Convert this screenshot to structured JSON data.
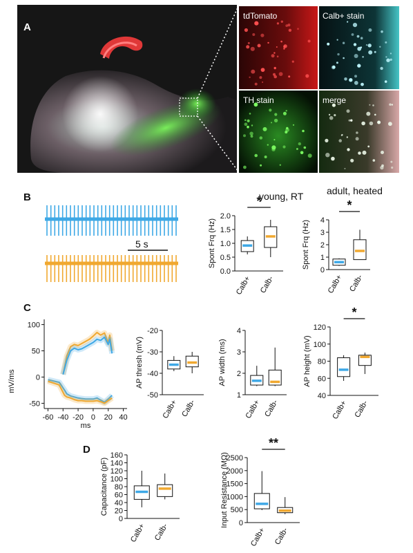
{
  "colors": {
    "calb_pos": "#3ea8e6",
    "calb_neg": "#f0a830",
    "green": "#3dd43d",
    "red": "#e02020",
    "cyan": "#4fd8d8"
  },
  "panels": {
    "A": "A",
    "B": "B",
    "C": "C",
    "D": "D"
  },
  "panel_a": {
    "micro_labels": [
      "tdTomato",
      "Calb+ stain",
      "TH stain",
      "merge"
    ]
  },
  "panel_b": {
    "scale_bar_label": "5 s",
    "chart_titles": [
      "young, RT",
      "adult, heated"
    ]
  },
  "chart_data": [
    {
      "type": "box",
      "id": "b1",
      "title": "young, RT",
      "ylabel": "Spont Frq (Hz)",
      "categories": [
        "Calb+",
        "Calb-"
      ],
      "ylim": [
        0,
        2
      ],
      "yticks": [
        0,
        0.5,
        1,
        1.5,
        2
      ],
      "ytick_labels": [
        "0.0",
        "0.5",
        "1.0",
        "1.5",
        "2.0"
      ],
      "boxes": [
        {
          "whislo": 0.6,
          "q1": 0.7,
          "med": 0.92,
          "q3": 1.1,
          "whishi": 1.25
        },
        {
          "whislo": 0.5,
          "q1": 0.85,
          "med": 1.25,
          "q3": 1.6,
          "whishi": 1.85
        }
      ],
      "significance": "*"
    },
    {
      "type": "box",
      "id": "b2",
      "title": "adult, heated",
      "ylabel": "Spont Frq (Hz)",
      "categories": [
        "Calb+",
        "Calb-"
      ],
      "ylim": [
        0,
        4
      ],
      "yticks": [
        0,
        1,
        2,
        3,
        4
      ],
      "ytick_labels": [
        "0",
        "1",
        "2",
        "3",
        "4"
      ],
      "boxes": [
        {
          "whislo": 0.3,
          "q1": 0.35,
          "med": 0.6,
          "q3": 0.85,
          "whishi": 0.9
        },
        {
          "whislo": 0.8,
          "q1": 0.8,
          "med": 1.5,
          "q3": 2.4,
          "whishi": 3.2
        }
      ],
      "significance": "*"
    },
    {
      "type": "line",
      "id": "c0",
      "ylabel": "mV/ms",
      "xlabel": "ms",
      "xlim": [
        -65,
        45
      ],
      "ylim": [
        -60,
        110
      ],
      "xticks": [
        -60,
        -40,
        -20,
        0,
        20,
        40
      ],
      "yticks": [
        -50,
        0,
        50,
        100
      ],
      "series": [
        {
          "color": "calb_neg",
          "x": [
            -40,
            -35,
            -30,
            -25,
            -20,
            -15,
            -10,
            -5,
            0,
            5,
            10,
            15,
            20,
            22,
            25
          ],
          "y": [
            5,
            40,
            58,
            62,
            60,
            64,
            68,
            72,
            78,
            85,
            80,
            84,
            65,
            80,
            50
          ]
        },
        {
          "color": "calb_pos",
          "x": [
            -40,
            -35,
            -30,
            -25,
            -20,
            -15,
            -10,
            -5,
            0,
            5,
            10,
            15,
            20,
            22,
            25
          ],
          "y": [
            5,
            32,
            50,
            55,
            52,
            54,
            58,
            62,
            66,
            72,
            70,
            76,
            62,
            72,
            45
          ]
        },
        {
          "color": "calb_pos",
          "x": [
            -60,
            -45,
            -38,
            -35,
            -30,
            -25,
            -20,
            -15,
            -10,
            -5,
            0,
            5,
            10,
            15,
            20,
            25
          ],
          "y": [
            -5,
            -10,
            -25,
            -32,
            -36,
            -38,
            -40,
            -41,
            -42,
            -42,
            -42,
            -40,
            -44,
            -48,
            -42,
            -35
          ]
        },
        {
          "color": "calb_neg",
          "x": [
            -60,
            -45,
            -38,
            -35,
            -30,
            -25,
            -20,
            -15,
            -10,
            -5,
            0,
            5,
            10,
            15,
            20,
            25
          ],
          "y": [
            -8,
            -15,
            -35,
            -38,
            -40,
            -43,
            -45,
            -45,
            -46,
            -46,
            -46,
            -45,
            -47,
            -50,
            -45,
            -40
          ]
        }
      ]
    },
    {
      "type": "box",
      "id": "c1",
      "ylabel": "AP thresh (mV)",
      "categories": [
        "Calb+",
        "Calb-"
      ],
      "ylim": [
        -50,
        -20
      ],
      "yticks": [
        -50,
        -40,
        -30,
        -20
      ],
      "ytick_labels": [
        "-50",
        "-40",
        "-30",
        "-20"
      ],
      "boxes": [
        {
          "whislo": -39,
          "q1": -38,
          "med": -36,
          "q3": -34,
          "whishi": -32
        },
        {
          "whislo": -40,
          "q1": -37,
          "med": -35,
          "q3": -32,
          "whishi": -30
        }
      ]
    },
    {
      "type": "box",
      "id": "c2",
      "ylabel": "AP width (ms)",
      "categories": [
        "Calb+",
        "Calb-"
      ],
      "ylim": [
        1,
        4
      ],
      "yticks": [
        1,
        2,
        3,
        4
      ],
      "ytick_labels": [
        "1",
        "2",
        "3",
        "4"
      ],
      "boxes": [
        {
          "whislo": 1.4,
          "q1": 1.45,
          "med": 1.65,
          "q3": 1.9,
          "whishi": 2.35
        },
        {
          "whislo": 1.4,
          "q1": 1.45,
          "med": 1.6,
          "q3": 2.15,
          "whishi": 3.2
        }
      ]
    },
    {
      "type": "box",
      "id": "c3",
      "ylabel": "AP height (mV)",
      "categories": [
        "Calb+",
        "Calb-"
      ],
      "ylim": [
        40,
        120
      ],
      "yticks": [
        40,
        60,
        80,
        100,
        120
      ],
      "ytick_labels": [
        "40",
        "60",
        "80",
        "100",
        "120"
      ],
      "boxes": [
        {
          "whislo": 57,
          "q1": 62,
          "med": 70,
          "q3": 84,
          "whishi": 87
        },
        {
          "whislo": 65,
          "q1": 75,
          "med": 85,
          "q3": 87,
          "whishi": 90
        }
      ],
      "significance": "*"
    },
    {
      "type": "box",
      "id": "d1",
      "ylabel": "Capacitance (pF)",
      "categories": [
        "Calb+",
        "Calb-"
      ],
      "ylim": [
        0,
        160
      ],
      "yticks": [
        0,
        20,
        40,
        60,
        80,
        100,
        120,
        140,
        160
      ],
      "ytick_labels": [
        "0",
        "20",
        "40",
        "60",
        "80",
        "100",
        "120",
        "140",
        "160"
      ],
      "boxes": [
        {
          "whislo": 28,
          "q1": 48,
          "med": 67,
          "q3": 82,
          "whishi": 120
        },
        {
          "whislo": 48,
          "q1": 55,
          "med": 75,
          "q3": 85,
          "whishi": 113
        }
      ]
    },
    {
      "type": "box",
      "id": "d2",
      "ylabel": "Input Resistance (MΩ)",
      "categories": [
        "Calb+",
        "Calb-"
      ],
      "ylim": [
        0,
        2500
      ],
      "yticks": [
        0,
        500,
        1000,
        1500,
        2000,
        2500
      ],
      "ytick_labels": [
        "0",
        "500",
        "1000",
        "1500",
        "2000",
        "2500"
      ],
      "boxes": [
        {
          "whislo": 480,
          "q1": 530,
          "med": 720,
          "q3": 1120,
          "whishi": 1980
        },
        {
          "whislo": 320,
          "q1": 380,
          "med": 460,
          "q3": 580,
          "whishi": 980
        }
      ],
      "significance": "**"
    }
  ]
}
